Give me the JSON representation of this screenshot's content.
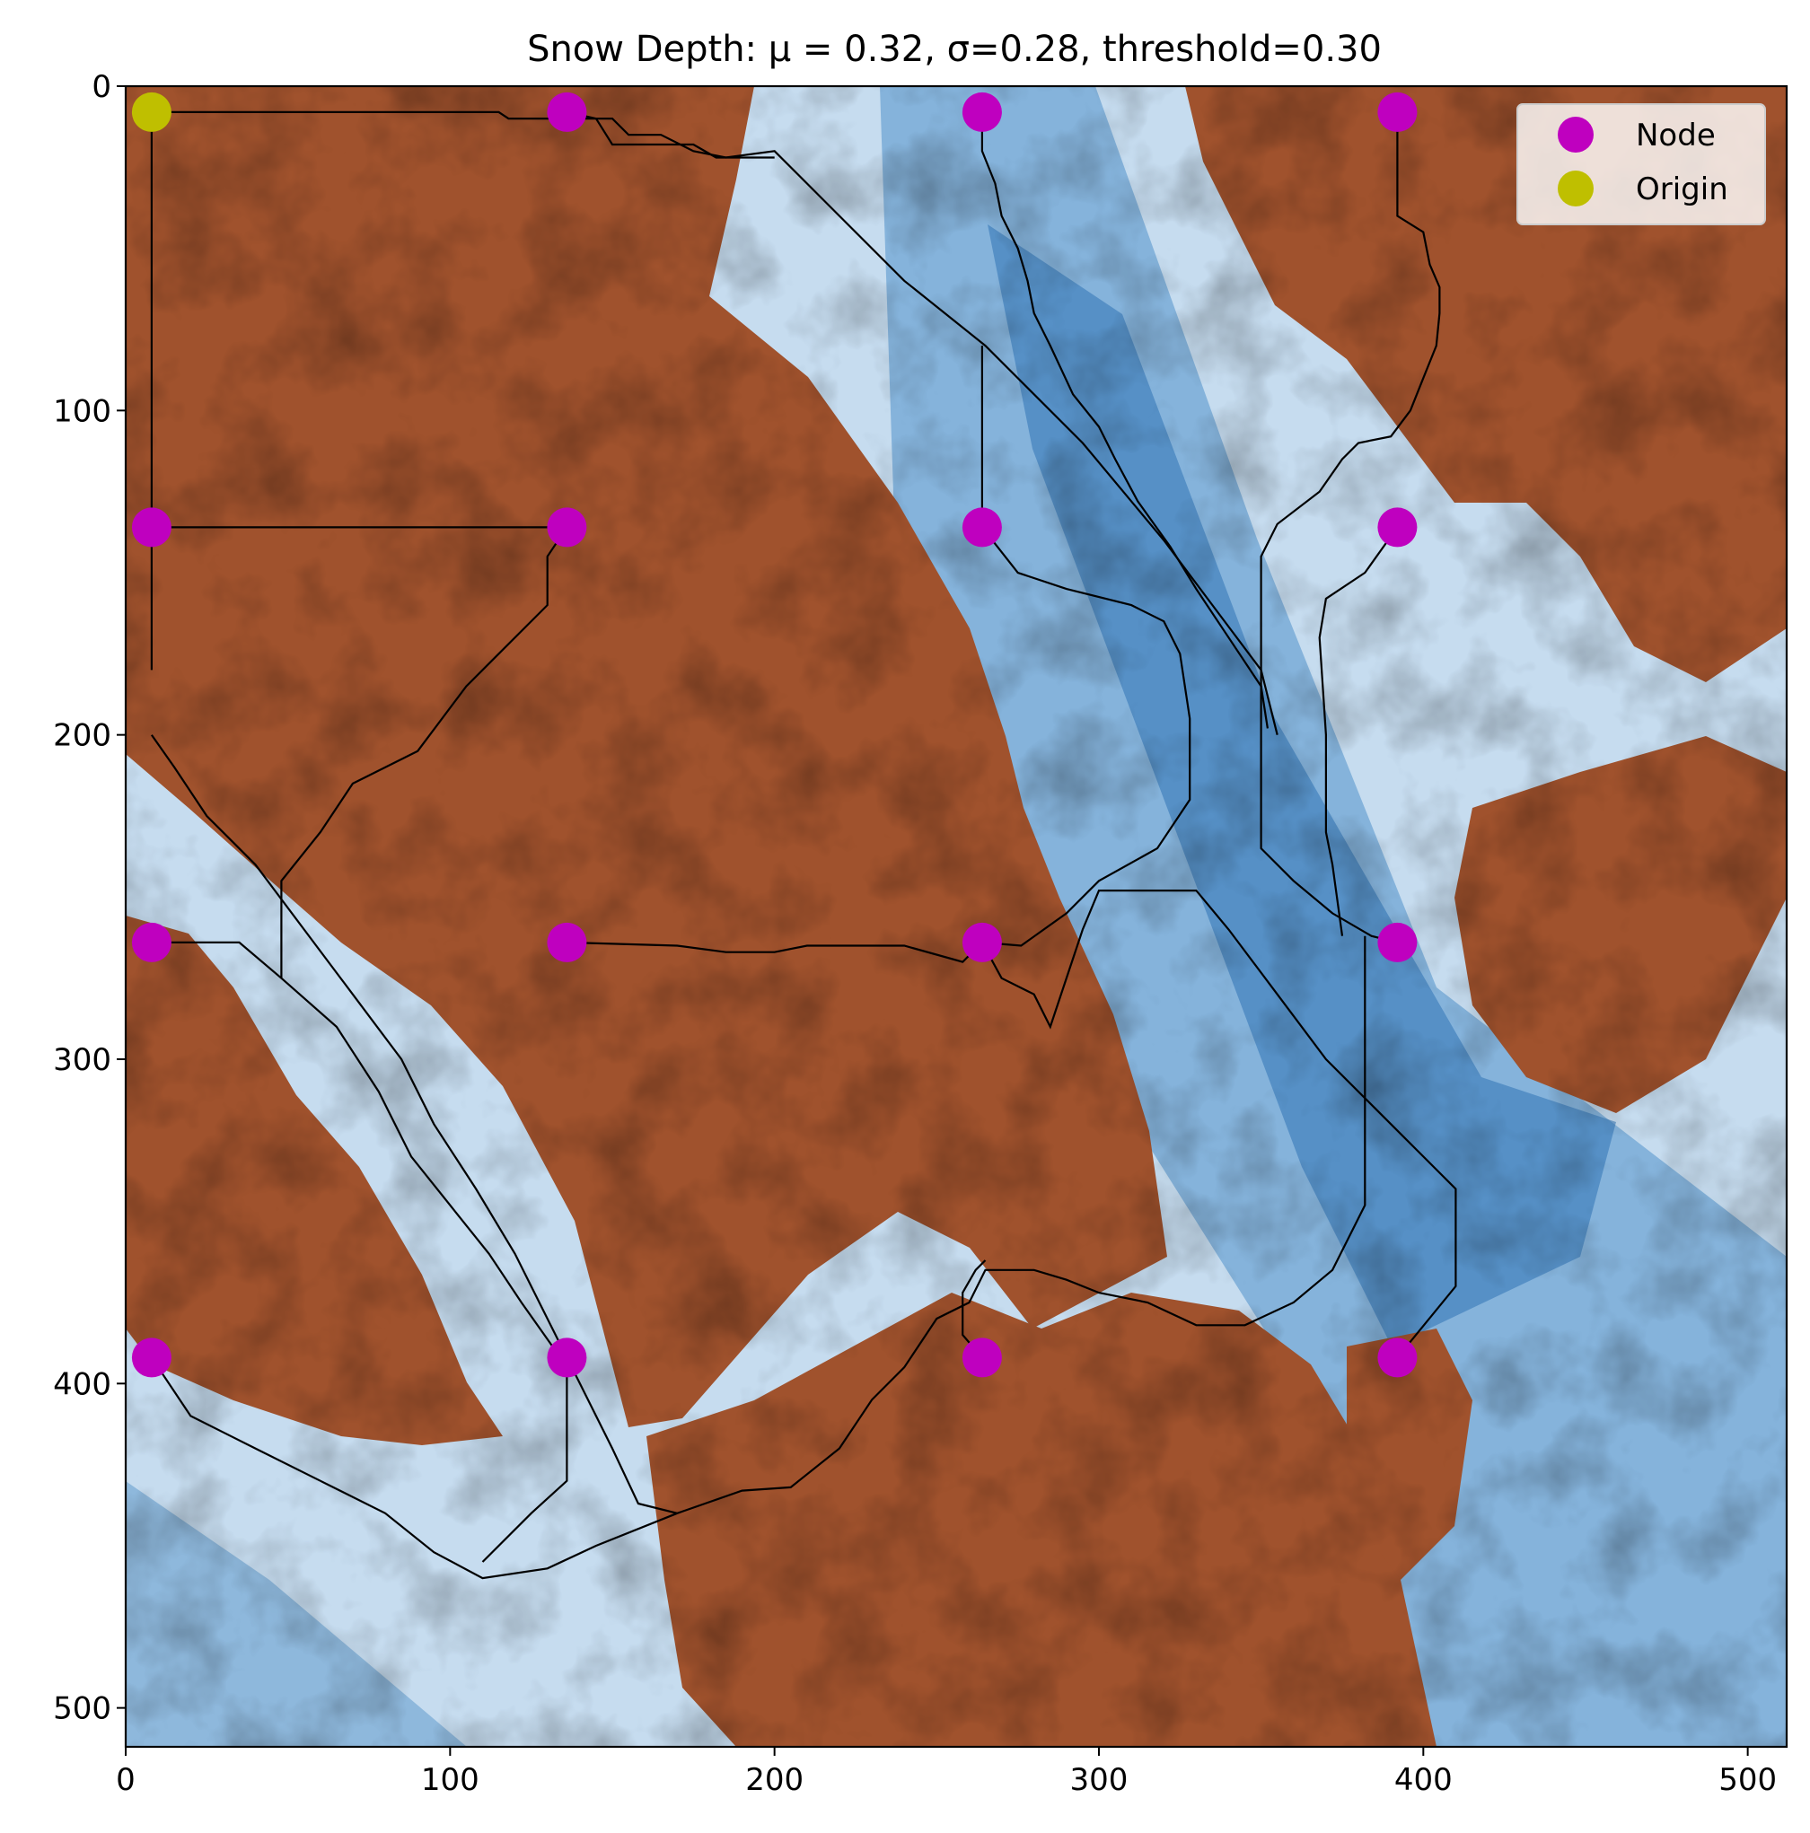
{
  "chart_data": {
    "type": "heatmap",
    "title": "Snow Depth: μ = 0.32, σ=0.28, threshold=0.30",
    "xlabel": "",
    "ylabel": "",
    "xlim": [
      0,
      512
    ],
    "ylim": [
      512,
      0
    ],
    "x_ticks": [
      0,
      100,
      200,
      300,
      400,
      500
    ],
    "y_ticks": [
      0,
      100,
      200,
      300,
      400,
      500
    ],
    "grid": false,
    "legend_position": "upper right",
    "legend": [
      {
        "label": "Node",
        "color": "#bf00bf"
      },
      {
        "label": "Origin",
        "color": "#bfbf00"
      }
    ],
    "colors": {
      "below_threshold": "#a0522d",
      "snow_low": "#e6f0f8",
      "snow_mid": "#7fb0d8",
      "snow_high": "#08509b",
      "path": "#000000"
    },
    "series": [
      {
        "name": "Node",
        "points": [
          [
            136,
            8
          ],
          [
            264,
            8
          ],
          [
            392,
            8
          ],
          [
            8,
            136
          ],
          [
            136,
            136
          ],
          [
            264,
            136
          ],
          [
            392,
            136
          ],
          [
            8,
            264
          ],
          [
            136,
            264
          ],
          [
            264,
            264
          ],
          [
            392,
            264
          ],
          [
            8,
            392
          ],
          [
            136,
            392
          ],
          [
            264,
            392
          ],
          [
            392,
            392
          ]
        ]
      },
      {
        "name": "Origin",
        "points": [
          [
            8,
            8
          ]
        ]
      }
    ],
    "paths": [
      [
        [
          8,
          8
        ],
        [
          8,
          180
        ]
      ],
      [
        [
          8,
          8
        ],
        [
          115,
          8
        ],
        [
          118,
          10
        ],
        [
          150,
          10
        ],
        [
          155,
          15
        ],
        [
          165,
          15
        ],
        [
          175,
          20
        ],
        [
          185,
          22
        ],
        [
          200,
          20
        ],
        [
          215,
          35
        ],
        [
          240,
          60
        ],
        [
          265,
          80
        ],
        [
          295,
          110
        ],
        [
          320,
          140
        ],
        [
          335,
          160
        ],
        [
          350,
          180
        ],
        [
          355,
          200
        ]
      ],
      [
        [
          136,
          8
        ],
        [
          145,
          10
        ],
        [
          150,
          18
        ],
        [
          175,
          18
        ],
        [
          182,
          22
        ],
        [
          200,
          22
        ]
      ],
      [
        [
          264,
          8
        ],
        [
          264,
          20
        ],
        [
          268,
          30
        ],
        [
          270,
          40
        ],
        [
          275,
          50
        ],
        [
          278,
          60
        ],
        [
          280,
          70
        ],
        [
          285,
          80
        ],
        [
          292,
          95
        ],
        [
          300,
          105
        ],
        [
          305,
          115
        ],
        [
          312,
          128
        ],
        [
          322,
          142
        ],
        [
          330,
          155
        ],
        [
          340,
          170
        ],
        [
          350,
          185
        ],
        [
          352,
          198
        ]
      ],
      [
        [
          392,
          8
        ],
        [
          392,
          40
        ],
        [
          400,
          45
        ],
        [
          402,
          55
        ],
        [
          405,
          62
        ],
        [
          405,
          70
        ],
        [
          404,
          80
        ],
        [
          400,
          90
        ],
        [
          396,
          100
        ],
        [
          390,
          108
        ],
        [
          380,
          110
        ],
        [
          375,
          115
        ],
        [
          368,
          125
        ],
        [
          355,
          135
        ],
        [
          350,
          145
        ],
        [
          350,
          200
        ],
        [
          350,
          235
        ],
        [
          360,
          245
        ],
        [
          372,
          255
        ],
        [
          384,
          262
        ],
        [
          392,
          264
        ]
      ],
      [
        [
          264,
          80
        ],
        [
          264,
          136
        ]
      ],
      [
        [
          8,
          136
        ],
        [
          136,
          136
        ]
      ],
      [
        [
          136,
          136
        ],
        [
          130,
          145
        ],
        [
          130,
          160
        ],
        [
          115,
          175
        ],
        [
          105,
          185
        ],
        [
          90,
          205
        ],
        [
          70,
          215
        ],
        [
          60,
          230
        ],
        [
          48,
          245
        ],
        [
          48,
          275
        ]
      ],
      [
        [
          264,
          136
        ],
        [
          275,
          150
        ],
        [
          290,
          155
        ],
        [
          310,
          160
        ],
        [
          320,
          165
        ],
        [
          325,
          175
        ],
        [
          328,
          195
        ],
        [
          328,
          220
        ],
        [
          318,
          235
        ],
        [
          300,
          245
        ],
        [
          290,
          255
        ],
        [
          276,
          265
        ],
        [
          264,
          264
        ]
      ],
      [
        [
          392,
          136
        ],
        [
          382,
          150
        ],
        [
          370,
          158
        ],
        [
          368,
          170
        ],
        [
          370,
          200
        ],
        [
          370,
          230
        ],
        [
          372,
          240
        ],
        [
          375,
          262
        ]
      ],
      [
        [
          8,
          264
        ],
        [
          35,
          264
        ],
        [
          48,
          275
        ],
        [
          65,
          290
        ],
        [
          78,
          310
        ],
        [
          88,
          330
        ],
        [
          100,
          345
        ],
        [
          112,
          360
        ],
        [
          122,
          375
        ],
        [
          134,
          392
        ]
      ],
      [
        [
          136,
          264
        ],
        [
          170,
          265
        ],
        [
          185,
          267
        ],
        [
          200,
          267
        ],
        [
          210,
          265
        ],
        [
          240,
          265
        ],
        [
          258,
          270
        ],
        [
          264,
          264
        ]
      ],
      [
        [
          8,
          200
        ],
        [
          15,
          210
        ],
        [
          25,
          225
        ],
        [
          40,
          240
        ],
        [
          55,
          260
        ],
        [
          70,
          280
        ],
        [
          85,
          300
        ],
        [
          95,
          320
        ],
        [
          108,
          340
        ],
        [
          120,
          360
        ],
        [
          130,
          380
        ],
        [
          140,
          400
        ],
        [
          150,
          420
        ],
        [
          158,
          437
        ],
        [
          170,
          440
        ]
      ],
      [
        [
          264,
          264
        ],
        [
          270,
          275
        ],
        [
          280,
          280
        ],
        [
          285,
          290
        ],
        [
          295,
          260
        ],
        [
          300,
          248
        ],
        [
          330,
          248
        ],
        [
          340,
          260
        ],
        [
          355,
          280
        ],
        [
          370,
          300
        ],
        [
          385,
          315
        ],
        [
          400,
          330
        ],
        [
          410,
          340
        ],
        [
          410,
          370
        ],
        [
          392,
          392
        ]
      ],
      [
        [
          8,
          392
        ],
        [
          20,
          410
        ],
        [
          40,
          420
        ],
        [
          60,
          430
        ],
        [
          80,
          440
        ],
        [
          95,
          452
        ],
        [
          110,
          460
        ],
        [
          130,
          457
        ],
        [
          145,
          450
        ],
        [
          170,
          440
        ]
      ],
      [
        [
          136,
          392
        ],
        [
          136,
          430
        ],
        [
          125,
          440
        ],
        [
          110,
          455
        ]
      ],
      [
        [
          170,
          440
        ],
        [
          190,
          433
        ],
        [
          205,
          432
        ],
        [
          220,
          420
        ],
        [
          230,
          405
        ],
        [
          240,
          395
        ],
        [
          250,
          380
        ],
        [
          260,
          375
        ],
        [
          265,
          365
        ],
        [
          280,
          365
        ],
        [
          290,
          368
        ],
        [
          300,
          372
        ],
        [
          315,
          375
        ],
        [
          330,
          382
        ],
        [
          345,
          382
        ],
        [
          360,
          375
        ],
        [
          372,
          365
        ],
        [
          382,
          345
        ],
        [
          382,
          280
        ],
        [
          382,
          262
        ]
      ],
      [
        [
          264,
          392
        ],
        [
          258,
          385
        ],
        [
          258,
          372
        ],
        [
          262,
          365
        ],
        [
          265,
          362
        ]
      ]
    ]
  }
}
